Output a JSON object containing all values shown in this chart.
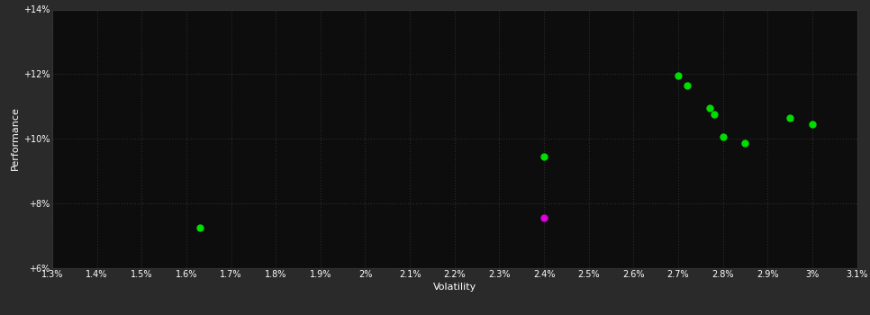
{
  "background_color": "#2a2a2a",
  "plot_bg_color": "#0d0d0d",
  "grid_color": "#2d2d2d",
  "xlabel": "Volatility",
  "ylabel": "Performance",
  "xlim": [
    0.013,
    0.031
  ],
  "ylim": [
    0.06,
    0.14
  ],
  "xticks": [
    0.013,
    0.014,
    0.015,
    0.016,
    0.017,
    0.018,
    0.019,
    0.02,
    0.021,
    0.022,
    0.023,
    0.024,
    0.025,
    0.026,
    0.027,
    0.028,
    0.029,
    0.03,
    0.031
  ],
  "yticks": [
    0.06,
    0.08,
    0.1,
    0.12,
    0.14
  ],
  "green_points": [
    [
      0.0163,
      0.0725
    ],
    [
      0.024,
      0.0945
    ],
    [
      0.027,
      0.1195
    ],
    [
      0.0272,
      0.1165
    ],
    [
      0.0277,
      0.1095
    ],
    [
      0.0278,
      0.1075
    ],
    [
      0.028,
      0.1005
    ],
    [
      0.0285,
      0.0985
    ],
    [
      0.0295,
      0.1065
    ],
    [
      0.03,
      0.1045
    ]
  ],
  "magenta_points": [
    [
      0.024,
      0.0755
    ]
  ],
  "point_size": 25,
  "green_color": "#00dd00",
  "magenta_color": "#dd00dd",
  "tick_fontsize": 7,
  "label_fontsize": 8,
  "ylabel_fontsize": 8
}
